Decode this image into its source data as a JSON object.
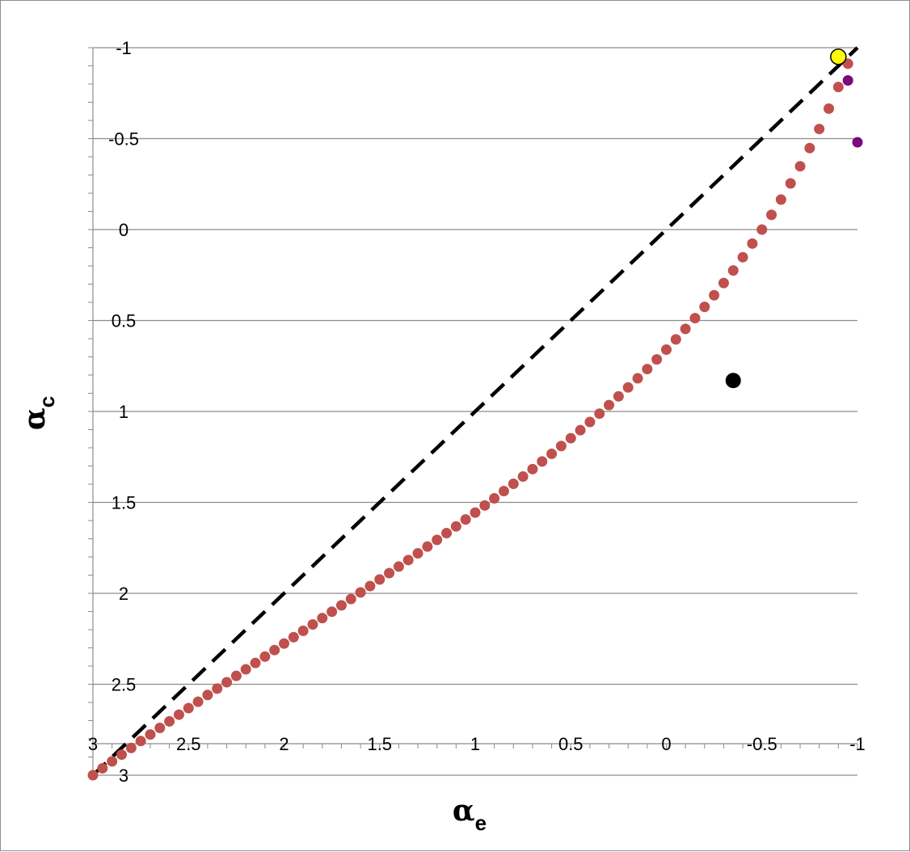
{
  "chart_data": {
    "type": "scatter",
    "title": "",
    "xlabel": "αe",
    "xlabel_symbol": "α",
    "xlabel_subscript": "e",
    "ylabel": "αc",
    "ylabel_symbol": "α",
    "ylabel_subscript": "c",
    "xlim": [
      3,
      -1
    ],
    "ylim": [
      -1,
      3
    ],
    "x_reversed": true,
    "y_reversed": true,
    "grid": "horizontal",
    "legend": "none",
    "xticks": [
      3,
      2.5,
      2,
      1.5,
      1,
      0.5,
      0,
      -0.5,
      -1
    ],
    "yticks": [
      -1,
      -0.5,
      0,
      0.5,
      1,
      1.5,
      2,
      2.5,
      3
    ],
    "xtick_labels": [
      "3",
      "2.5",
      "2",
      "1.5",
      "1",
      "0.5",
      "0",
      "-0.5",
      "-1"
    ],
    "ytick_labels": [
      "-1",
      "-0.5",
      "0",
      "0.5",
      "1",
      "1.5",
      "2",
      "2.5",
      "3"
    ],
    "series": [
      {
        "kind": "line",
        "style": "dashed",
        "color": "#000000",
        "x": [
          3,
          -1
        ],
        "y": [
          3,
          -1
        ]
      },
      {
        "kind": "markers",
        "color": "#c0504d",
        "x": [
          3.0,
          2.95,
          2.9,
          2.85,
          2.8,
          2.75,
          2.7,
          2.65,
          2.6,
          2.55,
          2.5,
          2.45,
          2.4,
          2.35,
          2.3,
          2.25,
          2.2,
          2.15,
          2.1,
          2.05,
          2.0,
          1.95,
          1.9,
          1.85,
          1.8,
          1.75,
          1.7,
          1.65,
          1.6,
          1.55,
          1.5,
          1.45,
          1.4,
          1.35,
          1.3,
          1.25,
          1.2,
          1.15,
          1.1,
          1.05,
          1.0,
          0.95,
          0.9,
          0.85,
          0.8,
          0.75,
          0.7,
          0.65,
          0.6,
          0.55,
          0.5,
          0.45,
          0.4,
          0.35,
          0.3,
          0.25,
          0.2,
          0.15,
          0.1,
          0.05,
          0.0,
          -0.05,
          -0.1,
          -0.15,
          -0.2,
          -0.25,
          -0.3,
          -0.35,
          -0.4,
          -0.45,
          -0.5,
          -0.55,
          -0.6,
          -0.65,
          -0.7,
          -0.75,
          -0.8,
          -0.85,
          -0.9,
          -0.95
        ],
        "y": [
          3.0,
          2.962,
          2.924,
          2.887,
          2.85,
          2.812,
          2.776,
          2.74,
          2.704,
          2.667,
          2.631,
          2.596,
          2.559,
          2.524,
          2.489,
          2.454,
          2.418,
          2.383,
          2.348,
          2.312,
          2.276,
          2.241,
          2.206,
          2.171,
          2.136,
          2.101,
          2.066,
          2.031,
          1.995,
          1.96,
          1.924,
          1.889,
          1.853,
          1.817,
          1.78,
          1.743,
          1.706,
          1.669,
          1.632,
          1.594,
          1.556,
          1.517,
          1.478,
          1.438,
          1.398,
          1.358,
          1.317,
          1.275,
          1.233,
          1.19,
          1.147,
          1.103,
          1.058,
          1.012,
          0.965,
          0.917,
          0.868,
          0.818,
          0.767,
          0.714,
          0.66,
          0.604,
          0.546,
          0.487,
          0.425,
          0.361,
          0.294,
          0.225,
          0.152,
          0.077,
          0.0,
          -0.081,
          -0.165,
          -0.254,
          -0.348,
          -0.448,
          -0.553,
          -0.665,
          -0.784,
          -0.912
        ]
      },
      {
        "kind": "markers",
        "color": "#000000",
        "size": "large",
        "x": [
          -0.35
        ],
        "y": [
          0.83
        ]
      },
      {
        "kind": "markers",
        "color": "#7b0a7b",
        "x": [
          -0.95,
          -1.0
        ],
        "y": [
          -0.82,
          -0.48
        ]
      },
      {
        "kind": "markers",
        "color": "#ffff00",
        "outline": "#000000",
        "size": "large",
        "x": [
          -0.9
        ],
        "y": [
          -0.95
        ]
      }
    ]
  }
}
